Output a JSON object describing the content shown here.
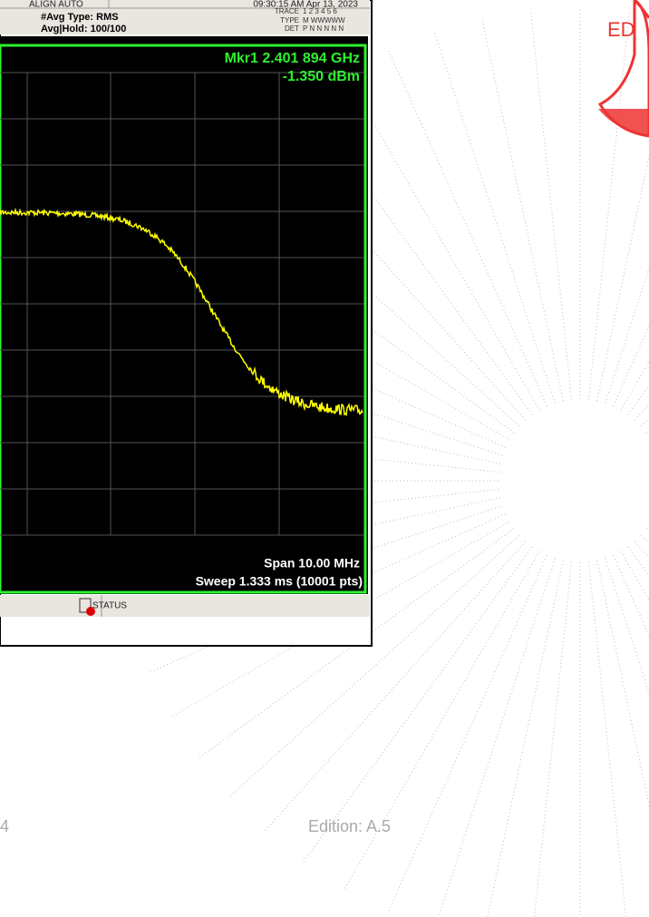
{
  "instrument": {
    "align_mode": "ALIGN AUTO",
    "timestamp": "09:30:15 AM Apr 13, 2023",
    "avg_type": "#Avg Type: RMS",
    "avg_hold": "Avg|Hold: 100/100",
    "trace_label": "TRACE",
    "trace_numbers": "1 2 3 4 5 6",
    "type_label": "TYPE",
    "type_values": "M WWWWW",
    "det_label": "DET",
    "det_values": "P N N N N N",
    "marker_freq": "Mkr1 2.401 894 GHz",
    "marker_level": "-1.350 dBm",
    "span": "Span 10.00 MHz",
    "sweep": "Sweep  1.333 ms (10001 pts)",
    "status": "STATUS"
  },
  "footer": {
    "page": "4",
    "edition": "Edition: A.5"
  },
  "stamp": {
    "text": "ED"
  }
}
